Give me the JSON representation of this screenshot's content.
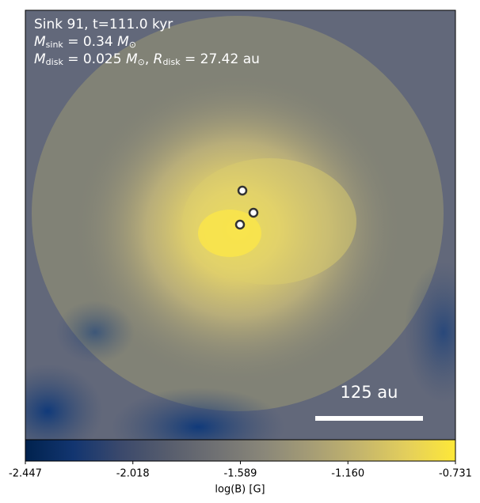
{
  "chart_data": {
    "type": "heatmap",
    "annotation_lines": [
      [
        {
          "text": "Sink 91, t=111.0 kyr"
        }
      ],
      [
        {
          "text": "M",
          "style": "italic"
        },
        {
          "text": "sink",
          "style": "sub"
        },
        {
          "text": " = 0.34 "
        },
        {
          "text": "M",
          "style": "italic"
        },
        {
          "text": "⊙",
          "style": "sub"
        }
      ],
      [
        {
          "text": "M",
          "style": "italic"
        },
        {
          "text": "disk",
          "style": "sub"
        },
        {
          "text": " = 0.025 "
        },
        {
          "text": "M",
          "style": "italic"
        },
        {
          "text": "⊙",
          "style": "sub"
        },
        {
          "text": ", "
        },
        {
          "text": "R",
          "style": "italic"
        },
        {
          "text": "disk",
          "style": "sub"
        },
        {
          "text": " = 27.42 au"
        }
      ]
    ],
    "scale_bar_label": "125 au",
    "colorbar_label": "log(B) [G]",
    "colormap": "cividis",
    "clim": [
      -2.447,
      -0.731
    ],
    "colorbar_ticks": [
      -2.447,
      -2.018,
      -1.589,
      {
        "value": -1.16,
        "label": "-1.160"
      },
      -0.731
    ]
  }
}
